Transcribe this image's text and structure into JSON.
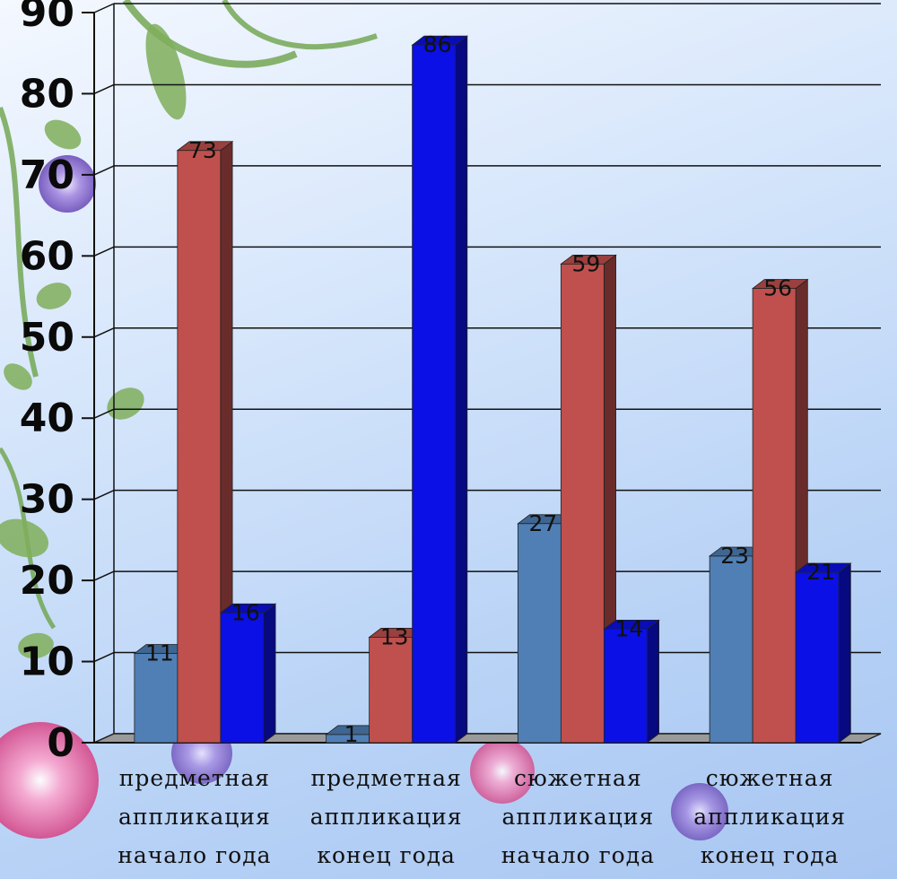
{
  "chart_data": {
    "type": "bar",
    "categories": [
      [
        "предметная",
        "аппликация",
        "начало года"
      ],
      [
        "предметная",
        "аппликация",
        "конец года"
      ],
      [
        "сюжетная",
        "аппликация",
        "начало года"
      ],
      [
        "сюжетная",
        "аппликация",
        "конец года"
      ]
    ],
    "series": [
      {
        "values": [
          11,
          1,
          27,
          23
        ],
        "color": "#4f7fb5"
      },
      {
        "values": [
          73,
          13,
          59,
          56
        ],
        "color": "#c0504d"
      },
      {
        "values": [
          16,
          86,
          14,
          21
        ],
        "color": "#0a10e6"
      }
    ],
    "ylim": [
      0,
      90
    ],
    "yticks": [
      0,
      10,
      20,
      30,
      40,
      50,
      60,
      70,
      80,
      90
    ],
    "grid": true,
    "style": "3d-clustered-column",
    "background": "floral-light-blue"
  }
}
